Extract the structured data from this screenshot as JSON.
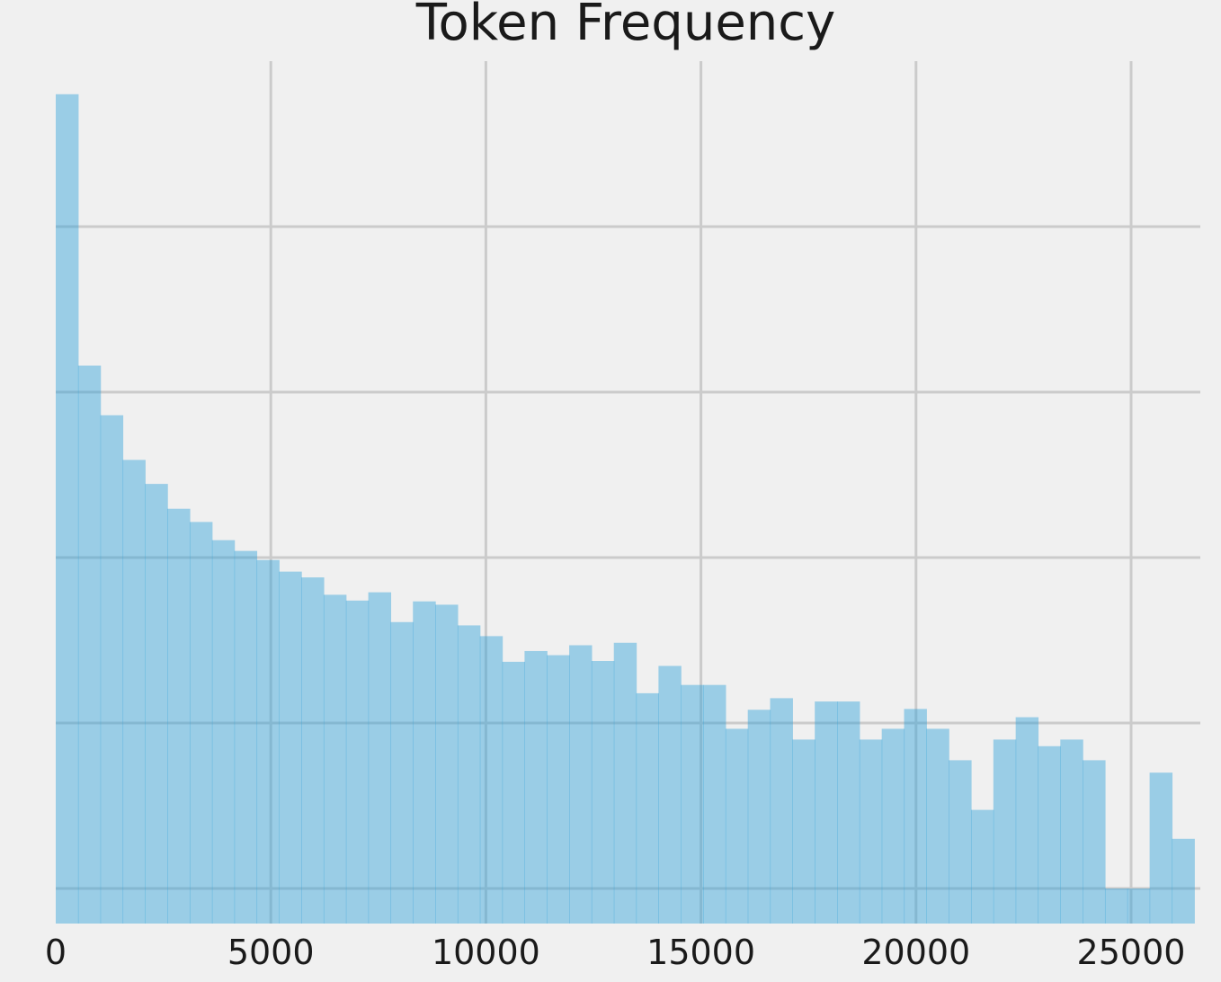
{
  "chart_data": {
    "type": "bar",
    "title": "Token Frequency",
    "xlabel": "",
    "ylabel": "",
    "xlim": [
      0,
      26400
    ],
    "ylim": [
      -42,
      1000
    ],
    "grid": true,
    "x_ticks": [
      0,
      5000,
      10000,
      15000,
      20000,
      25000
    ],
    "x_tick_labels": [
      "0",
      "5000",
      "10000",
      "15000",
      "20000",
      "25000"
    ],
    "y_gridlines": [
      0,
      200,
      400,
      600,
      800
    ],
    "bin_edges": [
      0,
      519,
      1038,
      1557,
      2076,
      2595,
      3114,
      3633,
      4152,
      4671,
      5190,
      5709,
      6228,
      6747,
      7266,
      7785,
      8304,
      8823,
      9342,
      9861,
      10380,
      10899,
      11418,
      11937,
      12456,
      12975,
      13494,
      14013,
      14532,
      15051,
      15570,
      16089,
      16608,
      17127,
      17646,
      18165,
      18684,
      19203,
      19722,
      20241,
      20760,
      21279,
      21798,
      22317,
      22836,
      23355,
      23874,
      24393,
      24912,
      25431,
      25950,
      26469
    ],
    "values": [
      960,
      632,
      572,
      518,
      489,
      459,
      443,
      421,
      408,
      397,
      383,
      376,
      355,
      348,
      358,
      322,
      347,
      343,
      318,
      305,
      274,
      287,
      282,
      294,
      275,
      297,
      236,
      269,
      246,
      246,
      193,
      216,
      230,
      180,
      226,
      226,
      180,
      193,
      217,
      193,
      155,
      95,
      180,
      207,
      172,
      180,
      155,
      0,
      0,
      140,
      60
    ]
  }
}
